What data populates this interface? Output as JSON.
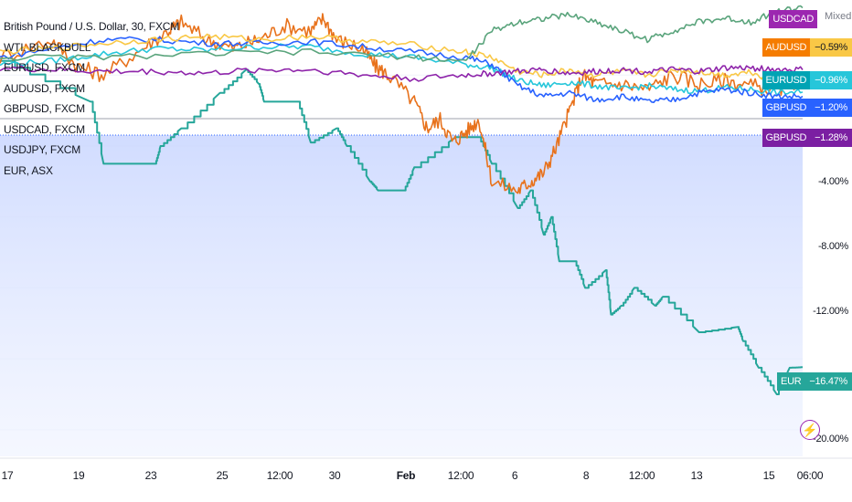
{
  "legend": {
    "title": "British Pound / U.S. Dollar, 30, FXCM",
    "items": [
      "WTI, BLACKBULL",
      "EURUSD, FXCM",
      "AUDUSD, FXCM",
      "GBPUSD, FXCM",
      "USDCAD, FXCM",
      "USDJPY, FXCM",
      "EUR, ASX"
    ]
  },
  "axis": {
    "mode": "Mixed",
    "y_ticks": [
      "-4.00%",
      "-8.00%",
      "-12.00%",
      "-20.00%"
    ],
    "x_ticks": [
      "17",
      "19",
      "23",
      "25",
      "12:00",
      "30",
      "Feb",
      "12:00",
      "6",
      "8",
      "12:00",
      "13",
      "15",
      "06:00"
    ]
  },
  "pills": [
    {
      "sym": "USDCAD",
      "val": "",
      "sym_color": "#9c27b0",
      "val_color": "#ffffff"
    },
    {
      "sym": "AUDUSD",
      "val": "−0.59%",
      "sym_color": "#f57c00",
      "val_color": "#f9c846"
    },
    {
      "sym": "EURUSD",
      "val": "−0.96%",
      "sym_color": "#00a3b4",
      "val_color": "#26c6da"
    },
    {
      "sym": "GBPUSD",
      "val": "−1.20%",
      "sym_color": "#2962ff",
      "val_color": "#2962ff"
    },
    {
      "sym": "GBPUSD",
      "val": "−1.28%",
      "sym_color": "#7b1fa2",
      "val_color": "#7b1fa2"
    },
    {
      "sym": "EUR",
      "val": "−16.47%",
      "sym_color": "#26a69a",
      "val_color": "#26a69a"
    }
  ],
  "chart_data": {
    "type": "line",
    "ylabel": "",
    "y_unit": "%",
    "ylim": [
      -21.5,
      3
    ],
    "x_range_days": [
      0,
      31
    ],
    "grid": true,
    "legend": "top-left",
    "series": [
      {
        "name": "EUR, ASX",
        "color": "#26a69a",
        "x": [
          0,
          3.5,
          4.0,
          4.1,
          6.0,
          6.2,
          7.0,
          8.5,
          9.5,
          10.0,
          10.2,
          11.5,
          12.0,
          13.0,
          13.4,
          14.3,
          14.6,
          15.4,
          15.6,
          16.0,
          17.6,
          18.5,
          19.0,
          20.0,
          20.5,
          21.0,
          21.3,
          21.6,
          22.2,
          22.6,
          23.4,
          23.6,
          24.0,
          24.5,
          25.3,
          25.6,
          27.0,
          28.5,
          28.7,
          29.3,
          30.0,
          30.5,
          31.0
        ],
        "y": [
          0.8,
          -1.5,
          -5.0,
          -5.0,
          -5.0,
          -4.0,
          -3.0,
          -1.0,
          0.3,
          -0.5,
          -1.5,
          -1.5,
          -3.8,
          -3.0,
          -4.0,
          -6.0,
          -6.5,
          -6.5,
          -6.5,
          -5.2,
          -3.5,
          -3.5,
          -5.0,
          -7.5,
          -6.5,
          -9.0,
          -8.0,
          -10.5,
          -10.5,
          -12.0,
          -11.0,
          -13.5,
          -13.0,
          -12.0,
          -13.0,
          -12.5,
          -14.5,
          -14.2,
          -15.0,
          -16.5,
          -18.0,
          -16.5,
          -16.47
        ]
      },
      {
        "name": "WTI, BLACKBULL",
        "color": "#e8721c",
        "x": [
          0,
          2.0,
          3.0,
          4.0,
          5.5,
          6.5,
          7.0,
          8.0,
          9.0,
          10.0,
          11.0,
          12.0,
          12.5,
          13.0,
          14.0,
          14.5,
          15.0,
          16.0,
          16.5,
          17.0,
          17.5,
          18.0,
          18.5,
          19.0,
          20.0,
          20.5,
          21.0,
          21.5,
          22.0,
          22.5,
          23.0,
          24.0,
          25.0,
          26.0,
          27.0,
          28.0,
          29.0,
          30.0,
          31.0
        ],
        "y": [
          1.0,
          2.0,
          0.5,
          0.0,
          1.5,
          2.5,
          3.0,
          2.0,
          1.5,
          2.0,
          2.8,
          2.5,
          3.2,
          2.0,
          1.5,
          0.5,
          0.0,
          -1.5,
          -3.0,
          -2.5,
          -3.8,
          -3.2,
          -2.5,
          -6.0,
          -6.5,
          -6.0,
          -5.5,
          -4.0,
          -2.0,
          0.0,
          -0.5,
          -0.5,
          -0.8,
          0.0,
          -0.5,
          -0.3,
          -0.6,
          -0.8,
          -0.59
        ]
      },
      {
        "name": "EURUSD, FXCM",
        "color": "#26c6da",
        "x": [
          0,
          2,
          4,
          6,
          8,
          10,
          12,
          14,
          16,
          18,
          19,
          20,
          21,
          22,
          23,
          24,
          25,
          26,
          27,
          28,
          29,
          30,
          31
        ],
        "y": [
          0.6,
          0.8,
          1.2,
          1.5,
          1.4,
          1.6,
          1.6,
          1.2,
          1.0,
          0.6,
          0.4,
          -0.3,
          -0.6,
          -0.4,
          -0.6,
          -0.8,
          -0.6,
          -0.8,
          -0.9,
          -0.7,
          -0.8,
          -1.0,
          -0.96
        ]
      },
      {
        "name": "GBPUSD, FXCM",
        "color": "#2962ff",
        "x": [
          0,
          2,
          4,
          6,
          8,
          10,
          12,
          14,
          16,
          18,
          19,
          20,
          21,
          22,
          23,
          24,
          25,
          26,
          27,
          28,
          29,
          30,
          31
        ],
        "y": [
          1.0,
          1.5,
          2.0,
          2.0,
          1.8,
          1.8,
          1.9,
          1.6,
          1.3,
          1.0,
          0.6,
          -0.6,
          -1.2,
          -1.0,
          -1.4,
          -1.2,
          -1.5,
          -1.4,
          -1.0,
          -0.8,
          -1.0,
          -1.2,
          -1.2
        ]
      },
      {
        "name": "AUDUSD, FXCM",
        "color": "#f9c846",
        "x": [
          0,
          2,
          4,
          6,
          8,
          10,
          12,
          14,
          16,
          18,
          19,
          20,
          21,
          22,
          23,
          24,
          25,
          26,
          27,
          28,
          29,
          30,
          31
        ],
        "y": [
          1.3,
          1.5,
          1.8,
          2.0,
          2.2,
          2.0,
          2.2,
          1.9,
          1.7,
          1.3,
          1.0,
          0.2,
          0.0,
          0.3,
          0.0,
          0.2,
          0.0,
          0.3,
          0.2,
          0.0,
          0.2,
          -0.4,
          -0.59
        ]
      },
      {
        "name": "USDCAD, FXCM",
        "color": "#8e24aa",
        "x": [
          0,
          2,
          4,
          6,
          8,
          10,
          12,
          14,
          16,
          18,
          19,
          20,
          21,
          22,
          23,
          24,
          25,
          26,
          27,
          28,
          29,
          30,
          31
        ],
        "y": [
          0.4,
          0.3,
          0.2,
          0.2,
          0.1,
          0.3,
          0.3,
          0.0,
          -0.2,
          0.0,
          0.1,
          0.2,
          0.3,
          0.1,
          0.2,
          0.3,
          0.2,
          0.3,
          0.2,
          0.4,
          0.4,
          0.3,
          0.3
        ]
      },
      {
        "name": "USDJPY, FXCM",
        "color": "#5aa47c",
        "x": [
          0,
          4,
          8,
          12,
          16,
          18,
          19,
          20,
          21,
          22,
          23,
          24,
          25,
          26,
          27,
          28,
          29,
          30,
          31
        ],
        "y": [
          1.0,
          1.0,
          1.2,
          1.3,
          1.0,
          0.8,
          2.5,
          3.0,
          3.2,
          3.4,
          3.0,
          2.5,
          2.0,
          2.5,
          3.0,
          3.2,
          3.0,
          3.6,
          3.8
        ]
      }
    ]
  }
}
